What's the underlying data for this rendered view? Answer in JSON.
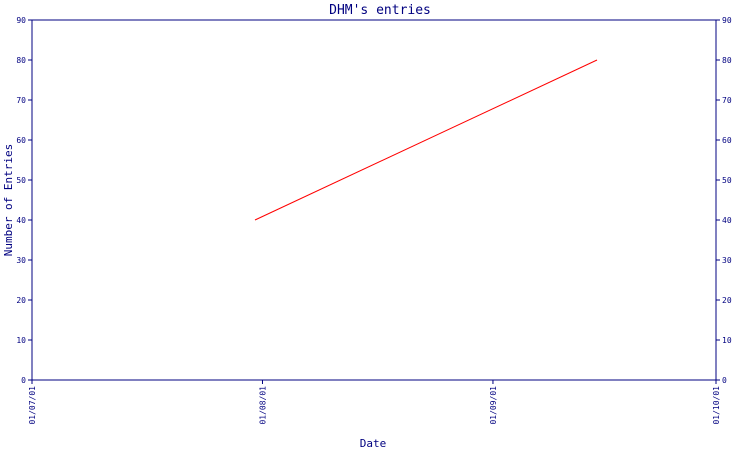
{
  "chart_data": {
    "type": "line",
    "title": "DHM's entries",
    "xlabel": "Date",
    "ylabel": "Number of Entries",
    "x_ticks": [
      "01/07/01",
      "01/08/01",
      "01/09/01",
      "01/10/01"
    ],
    "xlim": [
      "2001-07-01",
      "2001-10-01"
    ],
    "ylim": [
      0,
      90
    ],
    "y_ticks": [
      0,
      10,
      20,
      30,
      40,
      50,
      60,
      70,
      80,
      90
    ],
    "y_axis_right": true,
    "grid": false,
    "legend": "none",
    "series": [
      {
        "color": "#ff0000",
        "points": [
          {
            "x": "2001-07-31",
            "y": 40
          },
          {
            "x": "2001-09-15",
            "y": 80
          }
        ]
      }
    ]
  },
  "colors": {
    "axis": "#000080",
    "title": "#000080",
    "series": "#ff0000",
    "background": "#ffffff"
  }
}
